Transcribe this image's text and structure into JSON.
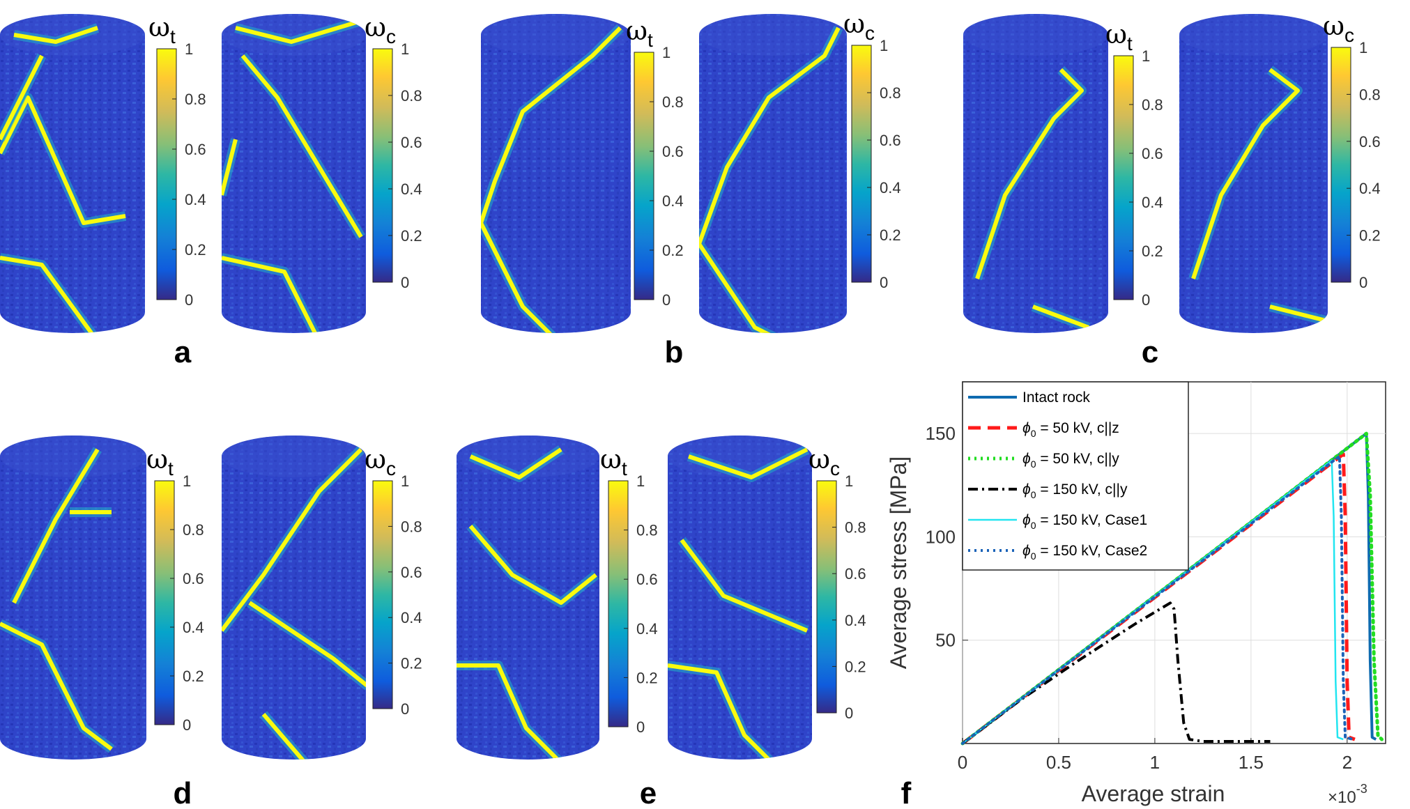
{
  "panel_labels": [
    "a",
    "b",
    "c",
    "d",
    "e",
    "f"
  ],
  "colorbar": {
    "label_t_symbol": "ω",
    "label_t_sub": "t",
    "label_c_symbol": "ω",
    "label_c_sub": "c",
    "ticks": [
      "0",
      "0.2",
      "0.4",
      "0.6",
      "0.8",
      "1"
    ],
    "colors": [
      "#352a87",
      "#0f5cdd",
      "#1481d6",
      "#06a4ca",
      "#2eb7a4",
      "#87bf77",
      "#d1bb59",
      "#fec832",
      "#f9fb0e"
    ]
  },
  "cylinder_colors": {
    "body": "#2c3fc6",
    "crack": "#f9fb0e",
    "halo": "#21b1c9"
  },
  "chart_data": {
    "type": "line",
    "xlabel": "Average strain",
    "ylabel": "Average stress [MPa]",
    "x_multiplier": "×10",
    "x_multiplier_exp": "-3",
    "xlim": [
      0,
      2.2
    ],
    "ylim": [
      0,
      175
    ],
    "xticks": [
      "0",
      "0.5",
      "1",
      "1.5",
      "2"
    ],
    "xtick_values": [
      0,
      0.5,
      1,
      1.5,
      2
    ],
    "yticks": [
      "50",
      "100",
      "150"
    ],
    "ytick_values": [
      50,
      100,
      150
    ],
    "grid": true,
    "legend_position": "top-left",
    "series": [
      {
        "name": "Intact rock",
        "name_prefix": "",
        "name_sub": "",
        "name_suffix": "",
        "color": "#0e6bb0",
        "style": "solid",
        "width": 4,
        "x": [
          0,
          2.1,
          2.11,
          2.12,
          2.13,
          2.15
        ],
        "y": [
          0,
          150,
          120,
          40,
          3,
          2
        ]
      },
      {
        "name": "",
        "name_prefix": "ϕ",
        "name_sub": "0",
        "name_suffix": " = 50 kV, c||z",
        "color": "#ff1a1a",
        "style": "dash",
        "width": 5,
        "x": [
          0,
          1.98,
          1.99,
          2.0,
          2.01,
          2.04
        ],
        "y": [
          0,
          140,
          110,
          30,
          3,
          2
        ]
      },
      {
        "name": "",
        "name_prefix": "ϕ",
        "name_sub": "0",
        "name_suffix": " = 50 kV, c||y",
        "color": "#22dd22",
        "style": "dot",
        "width": 5,
        "x": [
          0,
          2.1,
          2.12,
          2.14,
          2.16,
          2.18
        ],
        "y": [
          0,
          150,
          120,
          40,
          4,
          2
        ]
      },
      {
        "name": "",
        "name_prefix": "ϕ",
        "name_sub": "0",
        "name_suffix": " = 150 kV, c||y",
        "color": "#000000",
        "style": "dashdot",
        "width": 4,
        "x": [
          0,
          0.3,
          0.6,
          0.9,
          1.08,
          1.1,
          1.12,
          1.15,
          1.18,
          1.25,
          1.4,
          1.6
        ],
        "y": [
          0,
          21,
          40,
          58,
          68,
          65,
          40,
          10,
          2,
          1,
          1,
          1
        ]
      },
      {
        "name": "",
        "name_prefix": "ϕ",
        "name_sub": "0",
        "name_suffix": " = 150 kV, Case1",
        "color": "#22e5f0",
        "style": "solid",
        "width": 2.5,
        "x": [
          0,
          1.92,
          1.93,
          1.94,
          1.95,
          1.98
        ],
        "y": [
          0,
          137,
          110,
          30,
          3,
          2
        ]
      },
      {
        "name": "",
        "name_prefix": "ϕ",
        "name_sub": "0",
        "name_suffix": " = 150 kV, Case2",
        "color": "#1b63b8",
        "style": "dot",
        "width": 4,
        "x": [
          0,
          1.96,
          1.97,
          1.98,
          1.99,
          2.03
        ],
        "y": [
          0,
          139,
          110,
          30,
          3,
          2
        ]
      }
    ]
  }
}
